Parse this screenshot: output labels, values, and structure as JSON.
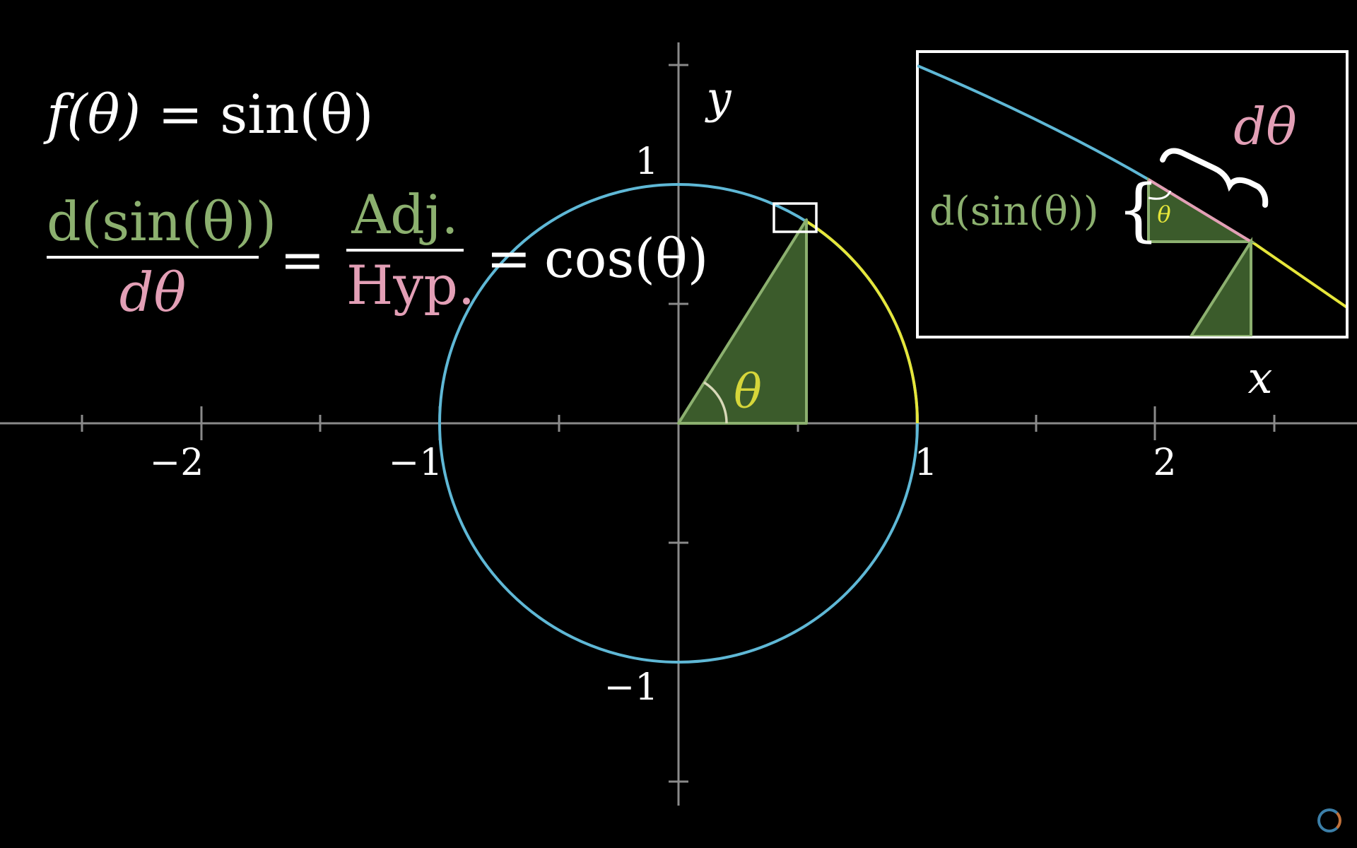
{
  "equation_top": {
    "lhs": "f(θ)",
    "equals": "=",
    "rhs": "sin(θ)"
  },
  "equation_derivative": {
    "numerator": "d(sin(θ))",
    "denominator": "dθ",
    "equals1": "=",
    "adj": "Adj.",
    "hyp": "Hyp.",
    "equals2": "=",
    "result": "cos(θ)"
  },
  "axes": {
    "x_label": "x",
    "y_label": "y",
    "x_ticks": [
      "−2",
      "−1",
      "1",
      "2"
    ],
    "y_ticks": [
      "1",
      "−1"
    ]
  },
  "angle_label": "θ",
  "inset": {
    "dsin_label": "d(sin(θ))",
    "brace_left": "{",
    "dtheta_label": "dθ",
    "angle_label": "θ"
  },
  "colors": {
    "circle": "#5fb8d6",
    "arc": "#e6e63a",
    "triangle_fill": "#3b5b2b",
    "triangle_stroke": "#8cb06f",
    "axis": "#8a8a8a",
    "numerator": "#8cb06f",
    "denominator": "#e39fb6"
  },
  "scene": {
    "unit_circle_radius": 1,
    "theta_degrees": 62
  }
}
